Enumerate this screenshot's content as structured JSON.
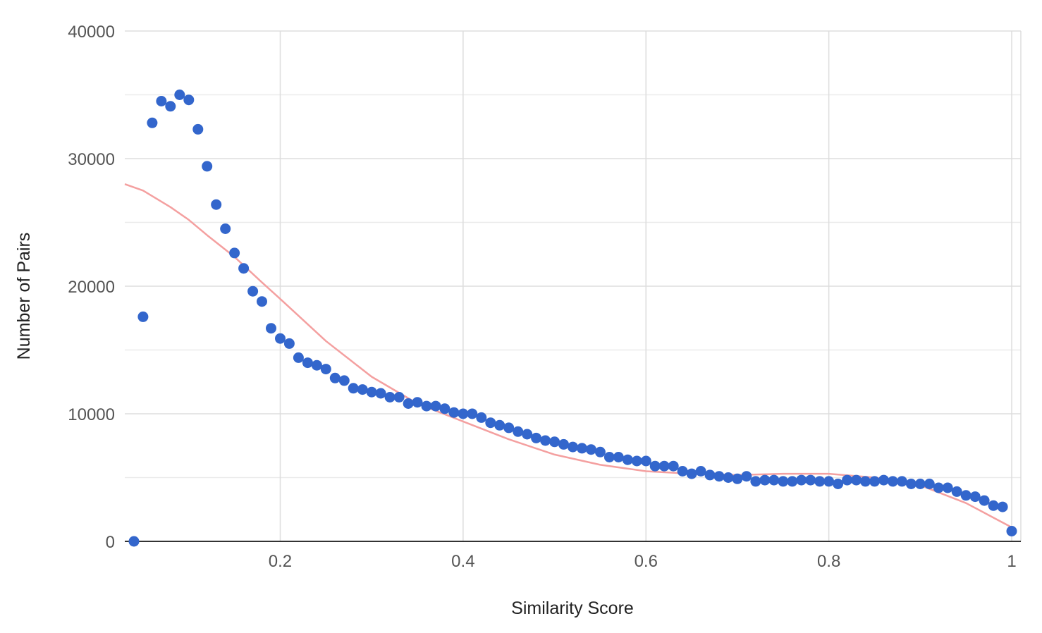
{
  "chart_data": {
    "type": "scatter",
    "title": "",
    "xlabel": "Similarity Score",
    "ylabel": "Number of Pairs",
    "xlim": [
      0.03,
      1.01
    ],
    "ylim": [
      0,
      40000
    ],
    "x_ticks": [
      0.2,
      0.4,
      0.6,
      0.8,
      1
    ],
    "x_tick_labels": [
      "0.2",
      "0.4",
      "0.6",
      "0.8",
      "1"
    ],
    "y_ticks": [
      0,
      10000,
      20000,
      30000,
      40000
    ],
    "y_tick_labels": [
      "0",
      "10000",
      "20000",
      "30000",
      "40000"
    ],
    "grid": true,
    "legend": "none",
    "colors": {
      "points": "#3366cc",
      "trendline": "#f4a0a0",
      "grid": "#dddddd",
      "axis": "#333333"
    },
    "series": [
      {
        "type": "scatter",
        "x": [
          0.04,
          0.05,
          0.06,
          0.07,
          0.08,
          0.09,
          0.1,
          0.11,
          0.12,
          0.13,
          0.14,
          0.15,
          0.16,
          0.17,
          0.18,
          0.19,
          0.2,
          0.21,
          0.22,
          0.23,
          0.24,
          0.25,
          0.26,
          0.27,
          0.28,
          0.29,
          0.3,
          0.31,
          0.32,
          0.33,
          0.34,
          0.35,
          0.36,
          0.37,
          0.38,
          0.39,
          0.4,
          0.41,
          0.42,
          0.43,
          0.44,
          0.45,
          0.46,
          0.47,
          0.48,
          0.49,
          0.5,
          0.51,
          0.52,
          0.53,
          0.54,
          0.55,
          0.56,
          0.57,
          0.58,
          0.59,
          0.6,
          0.61,
          0.62,
          0.63,
          0.64,
          0.65,
          0.66,
          0.67,
          0.68,
          0.69,
          0.7,
          0.71,
          0.72,
          0.73,
          0.74,
          0.75,
          0.76,
          0.77,
          0.78,
          0.79,
          0.8,
          0.81,
          0.82,
          0.83,
          0.84,
          0.85,
          0.86,
          0.87,
          0.88,
          0.89,
          0.9,
          0.91,
          0.92,
          0.93,
          0.94,
          0.95,
          0.96,
          0.97,
          0.98,
          0.99,
          1.0
        ],
        "y": [
          0,
          17600,
          32800,
          34500,
          34100,
          35000,
          34600,
          32300,
          29400,
          26400,
          24500,
          22600,
          21400,
          19600,
          18800,
          16700,
          15900,
          15500,
          14400,
          14000,
          13800,
          13500,
          12800,
          12600,
          12000,
          11900,
          11700,
          11600,
          11300,
          11300,
          10800,
          10900,
          10600,
          10600,
          10400,
          10100,
          10000,
          10000,
          9700,
          9300,
          9100,
          8900,
          8600,
          8400,
          8100,
          7900,
          7800,
          7600,
          7400,
          7300,
          7200,
          7000,
          6600,
          6600,
          6400,
          6300,
          6300,
          5900,
          5900,
          5900,
          5500,
          5300,
          5500,
          5200,
          5100,
          5000,
          4900,
          5100,
          4700,
          4800,
          4800,
          4700,
          4700,
          4800,
          4800,
          4700,
          4700,
          4500,
          4800,
          4800,
          4700,
          4700,
          4800,
          4700,
          4700,
          4500,
          4500,
          4500,
          4200,
          4200,
          3900,
          3600,
          3500,
          3200,
          2800,
          2700,
          800
        ]
      },
      {
        "type": "line",
        "x": [
          0.03,
          0.05,
          0.08,
          0.1,
          0.12,
          0.15,
          0.18,
          0.2,
          0.25,
          0.3,
          0.35,
          0.4,
          0.45,
          0.5,
          0.55,
          0.6,
          0.65,
          0.7,
          0.75,
          0.8,
          0.85,
          0.9,
          0.95,
          1.0
        ],
        "y": [
          28000,
          27500,
          26200,
          25200,
          24000,
          22300,
          20300,
          19000,
          15700,
          12900,
          10800,
          9400,
          8000,
          6800,
          6000,
          5500,
          5300,
          5200,
          5300,
          5300,
          5000,
          4400,
          3000,
          1100
        ]
      }
    ]
  }
}
